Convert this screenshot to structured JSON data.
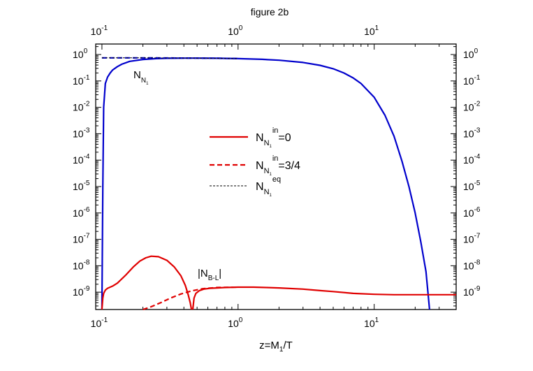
{
  "chart_data": {
    "type": "line",
    "title": "figure 2b",
    "xlabel": "z=M",
    "xlabel_sub": "1",
    "xlabel_tail": "/T",
    "x_scale": "log",
    "y_scale": "log",
    "xlim": [
      0.09,
      40
    ],
    "ylim": [
      2.2e-10,
      2.5
    ],
    "x_ticks": [
      {
        "value": 0.1,
        "base": "10",
        "exp": "-1"
      },
      {
        "value": 1,
        "base": "10",
        "exp": "0"
      },
      {
        "value": 10,
        "base": "10",
        "exp": "1"
      }
    ],
    "y_ticks": [
      {
        "value": 1,
        "base": "10",
        "exp": "0"
      },
      {
        "value": 0.1,
        "base": "10",
        "exp": "-1"
      },
      {
        "value": 0.01,
        "base": "10",
        "exp": "-2"
      },
      {
        "value": 0.001,
        "base": "10",
        "exp": "-3"
      },
      {
        "value": 0.0001,
        "base": "10",
        "exp": "-4"
      },
      {
        "value": 1e-05,
        "base": "10",
        "exp": "-5"
      },
      {
        "value": 1e-06,
        "base": "10",
        "exp": "-6"
      },
      {
        "value": 1e-07,
        "base": "10",
        "exp": "-7"
      },
      {
        "value": 1e-08,
        "base": "10",
        "exp": "-8"
      },
      {
        "value": 1e-09,
        "base": "10",
        "exp": "-9"
      }
    ],
    "legend": [
      {
        "main": "N",
        "sub": "N",
        "subsub": "1",
        "sup": "in",
        "tail": "=0",
        "color": "#e00000",
        "dash": "solid"
      },
      {
        "main": "N",
        "sub": "N",
        "subsub": "1",
        "sup": "in",
        "tail": "=3/4",
        "color": "#e00000",
        "dash": "dashed"
      },
      {
        "main": "N",
        "sub": "N",
        "subsub": "1",
        "sup": "eq",
        "tail": "",
        "color": "#000000",
        "dash": "dotted"
      }
    ],
    "annotations": [
      {
        "id": "nn1",
        "main": "N",
        "sub": "N",
        "subsub": "1"
      },
      {
        "id": "nbl",
        "main": "|N",
        "sub": "B-L",
        "tail": "|"
      }
    ],
    "series": [
      {
        "color": "#0000cc",
        "dash": "solid",
        "x": [
          0.1,
          0.1015,
          0.103,
          0.106,
          0.11,
          0.115,
          0.12,
          0.13,
          0.14,
          0.16,
          0.2,
          0.25,
          0.3,
          0.4,
          0.5,
          0.7,
          1.0,
          1.5,
          2,
          3,
          4,
          5,
          6,
          7,
          8,
          10,
          12,
          14,
          16,
          18,
          20,
          22,
          24,
          25.5
        ],
        "y": [
          2.2e-10,
          1e-05,
          0.01,
          0.08,
          0.14,
          0.2,
          0.26,
          0.35,
          0.43,
          0.55,
          0.65,
          0.7,
          0.72,
          0.73,
          0.73,
          0.72,
          0.7,
          0.66,
          0.61,
          0.5,
          0.39,
          0.29,
          0.2,
          0.13,
          0.08,
          0.024,
          0.005,
          0.0008,
          9e-05,
          1e-05,
          1e-06,
          8e-08,
          6e-09,
          2.2e-10
        ]
      },
      {
        "color": "#0000cc",
        "dash": "dashed",
        "x": [
          0.1,
          0.2,
          0.3,
          0.4,
          0.5,
          0.7,
          1.0
        ],
        "y": [
          0.75,
          0.75,
          0.74,
          0.735,
          0.73,
          0.72,
          0.7
        ]
      },
      {
        "color": "#000000",
        "dash": "dotted",
        "x": [
          0.1,
          0.2,
          0.3,
          0.4,
          0.5,
          0.7,
          1.0
        ],
        "y": [
          0.75,
          0.75,
          0.74,
          0.735,
          0.73,
          0.72,
          0.7
        ]
      },
      {
        "color": "#e00000",
        "dash": "solid",
        "x": [
          0.1,
          0.1015,
          0.103,
          0.106,
          0.11,
          0.12,
          0.13,
          0.15,
          0.17,
          0.19,
          0.21,
          0.23,
          0.26,
          0.3,
          0.34,
          0.38,
          0.41,
          0.43,
          0.445,
          0.455
        ],
        "y": [
          2.2e-10,
          6e-10,
          9e-10,
          1.2e-09,
          1.4e-09,
          1.7e-09,
          2.2e-09,
          4.5e-09,
          9e-09,
          1.5e-08,
          2e-08,
          2.3e-08,
          2.2e-08,
          1.6e-08,
          9e-09,
          4.2e-09,
          1.8e-09,
          8e-10,
          4e-10,
          2.2e-10
        ]
      },
      {
        "color": "#e00000",
        "dash": "solid",
        "x": [
          0.465,
          0.475,
          0.49,
          0.52,
          0.56,
          0.62,
          0.7,
          0.8,
          1.0,
          1.3,
          1.6,
          2,
          3,
          4,
          5,
          7,
          10,
          14,
          20,
          30,
          40
        ],
        "y": [
          2.2e-10,
          6e-10,
          9e-10,
          1.15e-09,
          1.3e-09,
          1.4e-09,
          1.45e-09,
          1.5e-09,
          1.55e-09,
          1.55e-09,
          1.5e-09,
          1.45e-09,
          1.3e-09,
          1.15e-09,
          1.05e-09,
          9e-10,
          8.3e-10,
          8e-10,
          8e-10,
          8e-10,
          8e-10
        ]
      },
      {
        "color": "#e00000",
        "dash": "dashed",
        "x": [
          0.2,
          0.23,
          0.27,
          0.32,
          0.38,
          0.45,
          0.55,
          0.7,
          1.0
        ],
        "y": [
          2.2e-10,
          2.8e-10,
          4e-10,
          6e-10,
          8.5e-10,
          1.1e-09,
          1.35e-09,
          1.5e-09,
          1.55e-09
        ]
      }
    ]
  }
}
